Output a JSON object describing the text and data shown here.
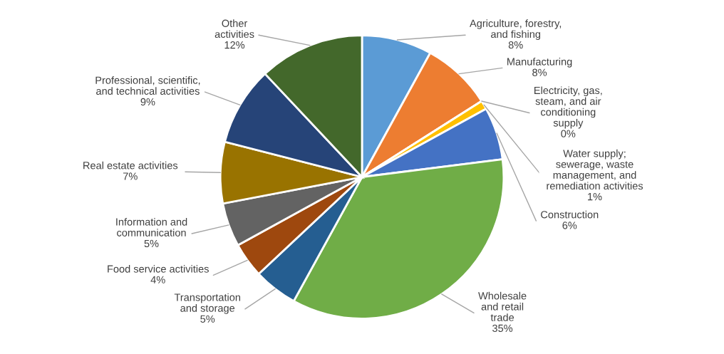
{
  "chart_data": {
    "type": "pie",
    "categories": [
      "Agriculture, forestry,\nand fishing",
      "Manufacturing",
      "Electricity, gas,\nsteam, and air\nconditioning\nsupply",
      "Water supply;\nsewerage, waste\nmanagement, and\nremediation activities",
      "Construction",
      "Wholesale\nand retail\ntrade",
      "Transportation\nand storage",
      "Food service activities",
      "Information and\ncommunication",
      "Real estate activities",
      "Professional, scientific,\nand technical activities",
      "Other\nactivities"
    ],
    "values": [
      8,
      8,
      0,
      1,
      6,
      35,
      5,
      4,
      5,
      7,
      9,
      12
    ],
    "colors": [
      "#5b9bd5",
      "#ed7d31",
      "#a5a5a5",
      "#ffc000",
      "#4472c4",
      "#70ad47",
      "#255e91",
      "#9e480e",
      "#636363",
      "#997300",
      "#264478",
      "#43682b"
    ],
    "value_labels": [
      "8%",
      "8%",
      "0%",
      "1%",
      "6%",
      "35%",
      "5%",
      "4%",
      "5%",
      "7%",
      "9%",
      "12%"
    ]
  }
}
